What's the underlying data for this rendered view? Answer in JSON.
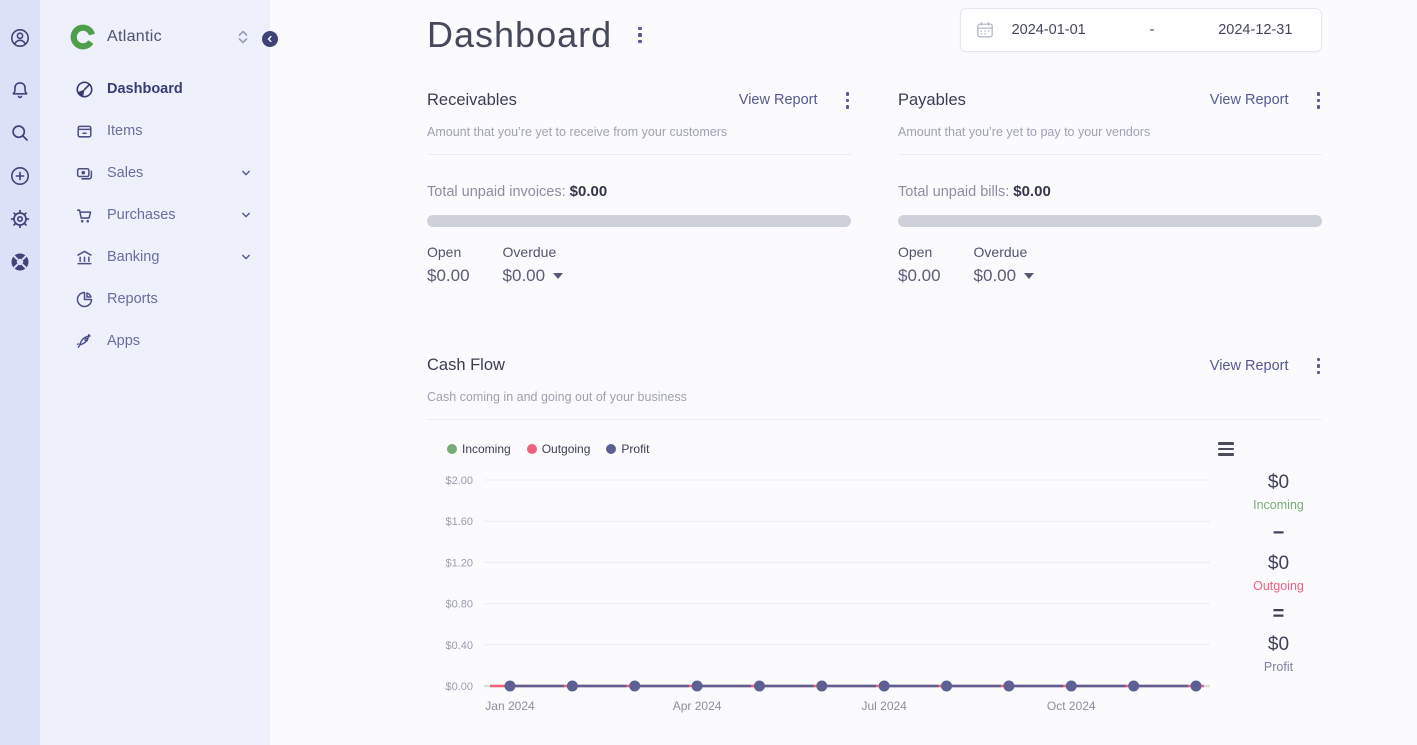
{
  "colors": {
    "rail_bg": "#dce1f8",
    "sidebar_bg": "#eef1fb",
    "main_bg": "#fbfbfd",
    "indigo_accent": "#3f4377",
    "link": "#545992",
    "logo_green": "#4e9e4e",
    "progress_track": "#ced1da",
    "incoming_green": "#7bab76",
    "outgoing_red": "#f1607d",
    "profit_purple": "#5d6093"
  },
  "brand": {
    "company_name": "Atlantic",
    "logo_icon": "akaunting-logo",
    "switcher_icon": "up-down-chevron-icon",
    "collapse_icon": "chevron-left-icon"
  },
  "rail": {
    "icons": [
      "account-icon",
      "notifications-bell-icon",
      "search-icon",
      "add-new-plus-icon",
      "settings-gear-icon",
      "help-lifebuoy-icon"
    ]
  },
  "sidebar": {
    "items": [
      {
        "label": "Dashboard",
        "icon": "gauge-icon",
        "active": true,
        "expandable": false
      },
      {
        "label": "Items",
        "icon": "box-icon",
        "active": false,
        "expandable": false
      },
      {
        "label": "Sales",
        "icon": "banknote-icon",
        "active": false,
        "expandable": true
      },
      {
        "label": "Purchases",
        "icon": "cart-icon",
        "active": false,
        "expandable": true
      },
      {
        "label": "Banking",
        "icon": "bank-icon",
        "active": false,
        "expandable": true
      },
      {
        "label": "Reports",
        "icon": "pie-chart-icon",
        "active": false,
        "expandable": false
      },
      {
        "label": "Apps",
        "icon": "rocket-icon",
        "active": false,
        "expandable": false
      }
    ]
  },
  "header": {
    "page_title": "Dashboard",
    "date_range": {
      "icon": "calendar-icon",
      "start": "2024-01-01",
      "separator": "-",
      "end": "2024-12-31"
    }
  },
  "receivables": {
    "title": "Receivables",
    "view_report_label": "View Report",
    "description": "Amount that you’re yet to receive from your customers",
    "total_label": "Total unpaid invoices:",
    "total_value": "$0.00",
    "progress_percent": 0,
    "open_label": "Open",
    "open_value": "$0.00",
    "overdue_label": "Overdue",
    "overdue_value": "$0.00"
  },
  "payables": {
    "title": "Payables",
    "view_report_label": "View Report",
    "description": "Amount that you’re yet to pay to your vendors",
    "total_label": "Total unpaid bills:",
    "total_value": "$0.00",
    "progress_percent": 0,
    "open_label": "Open",
    "open_value": "$0.00",
    "overdue_label": "Overdue",
    "overdue_value": "$0.00"
  },
  "cashflow": {
    "title": "Cash Flow",
    "view_report_label": "View Report",
    "description": "Cash coming in and going out of your business",
    "menu_icon": "hamburger-menu-icon",
    "summary": {
      "incoming_value": "$0",
      "incoming_label": "Incoming",
      "minus_sign": "−",
      "outgoing_value": "$0",
      "outgoing_label": "Outgoing",
      "equals_sign": "=",
      "profit_value": "$0",
      "profit_label": "Profit"
    },
    "chart_data": {
      "type": "line",
      "title": "Cash Flow",
      "x_points": 12,
      "x_tick_labels": [
        "Jan 2024",
        "Apr 2024",
        "Jul 2024",
        "Oct 2024"
      ],
      "x_tick_indices": [
        0,
        3,
        6,
        9
      ],
      "y_tick_labels": [
        "$2.00",
        "$1.60",
        "$1.20",
        "$0.80",
        "$0.40",
        "$0.00"
      ],
      "ylim": [
        0,
        2
      ],
      "grid": true,
      "legend_position": "top-left",
      "series": [
        {
          "name": "Incoming",
          "color": "#7bab76",
          "values": [
            0,
            0,
            0,
            0,
            0,
            0,
            0,
            0,
            0,
            0,
            0,
            0
          ]
        },
        {
          "name": "Outgoing",
          "color": "#f1607d",
          "values": [
            0,
            0,
            0,
            0,
            0,
            0,
            0,
            0,
            0,
            0,
            0,
            0
          ]
        },
        {
          "name": "Profit",
          "color": "#5d6093",
          "values": [
            0,
            0,
            0,
            0,
            0,
            0,
            0,
            0,
            0,
            0,
            0,
            0
          ]
        }
      ]
    }
  }
}
